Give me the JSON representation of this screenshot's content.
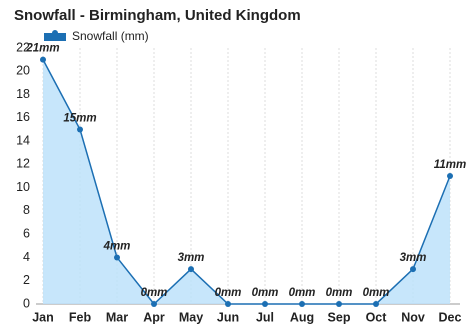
{
  "chart_data": {
    "type": "area",
    "title": "Snowfall - Birmingham, United Kingdom",
    "categories": [
      "Jan",
      "Feb",
      "Mar",
      "Apr",
      "May",
      "Jun",
      "Jul",
      "Aug",
      "Sep",
      "Oct",
      "Nov",
      "Dec"
    ],
    "series": [
      {
        "name": "Snowfall (mm)",
        "color": "#1c6fb3",
        "fill": "#bde2fa",
        "values": [
          21,
          15,
          4,
          0,
          3,
          0,
          0,
          0,
          0,
          0,
          3,
          11
        ],
        "value_labels": [
          "21mm",
          "15mm",
          "4mm",
          "0mm",
          "3mm",
          "0mm",
          "0mm",
          "0mm",
          "0mm",
          "0mm",
          "3mm",
          "11mm"
        ]
      }
    ],
    "ylim": [
      0,
      22
    ],
    "yticks": [
      0,
      2,
      4,
      6,
      8,
      10,
      12,
      14,
      16,
      18,
      20,
      22
    ],
    "grid": true
  }
}
